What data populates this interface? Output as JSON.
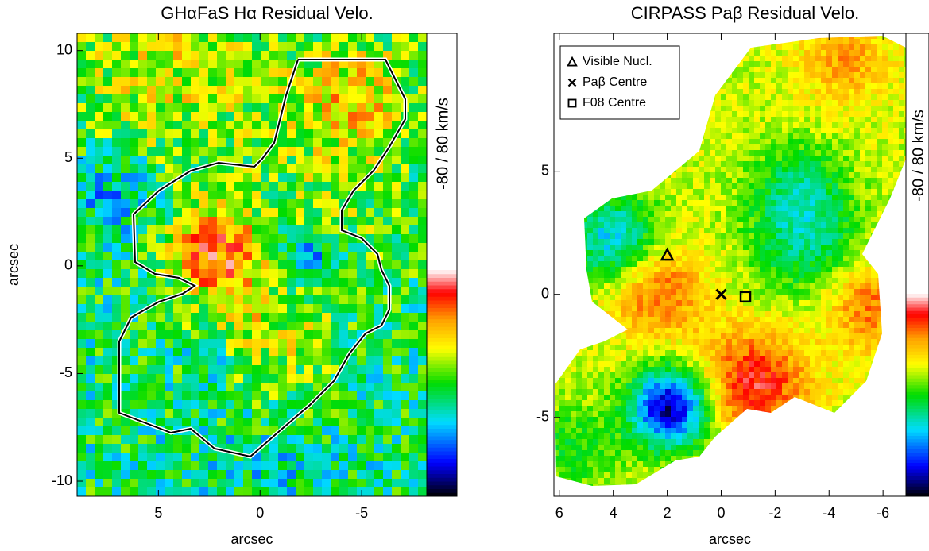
{
  "chart_data": [
    {
      "type": "map",
      "title": "GHαFaS Hα Residual Velo.",
      "x_label": "arcsec",
      "y_label": "arcsec",
      "xlim": [
        9,
        -8.2
      ],
      "ylim": [
        -10.7,
        10.8
      ],
      "xticks": [
        5,
        0,
        -5
      ],
      "yticks": [
        10,
        5,
        0,
        -5,
        -10
      ],
      "colorbar_label": "-80  /  80  km/s"
    },
    {
      "type": "map",
      "title": "CIRPASS Paβ Residual Velo.",
      "x_label": "arcsec",
      "xlim": [
        6.2,
        -6.85
      ],
      "ylim": [
        -8.2,
        10.6
      ],
      "xticks": [
        6,
        4,
        2,
        0,
        -2,
        -4,
        -6
      ],
      "yticks": [
        5,
        0,
        -5
      ],
      "colorbar_label": "-80  /  80  km/s",
      "markers": [
        {
          "name": "Visible Nucl.",
          "symbol": "triangle",
          "x": 2.0,
          "y": 1.6
        },
        {
          "name": "Paβ Centre",
          "symbol": "cross",
          "x": 0,
          "y": 0
        },
        {
          "name": "F08 Centre",
          "symbol": "square",
          "x": -0.9,
          "y": -0.1
        }
      ]
    }
  ]
}
